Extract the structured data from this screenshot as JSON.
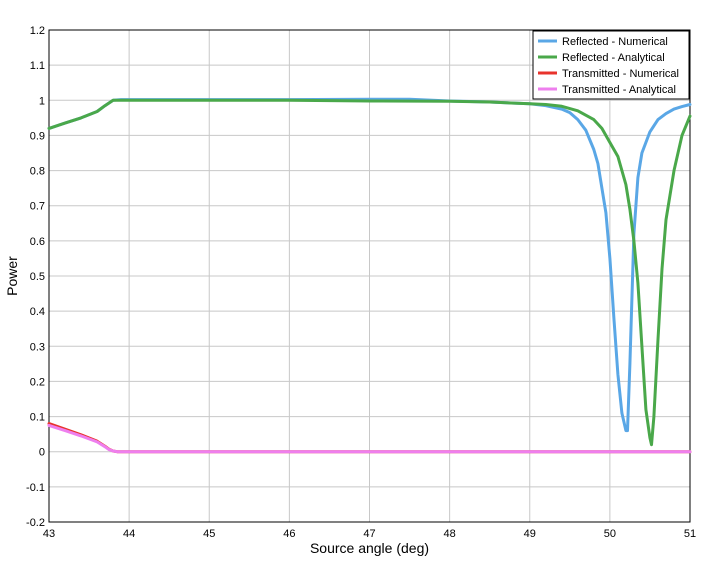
{
  "chart_data": {
    "type": "line",
    "title": "",
    "xlabel": "Source angle (deg)",
    "ylabel": "Power",
    "xlim": [
      43,
      51
    ],
    "ylim": [
      -0.2,
      1.2
    ],
    "xticks": [
      43,
      44,
      45,
      46,
      47,
      48,
      49,
      50,
      51
    ],
    "yticks": [
      -0.2,
      -0.1,
      0,
      0.1,
      0.2,
      0.3,
      0.4,
      0.5,
      0.6,
      0.7,
      0.8,
      0.9,
      1,
      1.1,
      1.2
    ],
    "xtick_labels": [
      "43",
      "44",
      "45",
      "46",
      "47",
      "48",
      "49",
      "50",
      "51"
    ],
    "ytick_labels": [
      "-0.2",
      "-0.1",
      "0",
      "0.1",
      "0.2",
      "0.3",
      "0.4",
      "0.5",
      "0.6",
      "0.7",
      "0.8",
      "0.9",
      "1",
      "1.1",
      "1.2"
    ],
    "grid": true,
    "legend_position": "top-right",
    "series": [
      {
        "name": "Reflected - Numerical",
        "color": "#5aa7e6",
        "x": [
          43,
          43.2,
          43.4,
          43.6,
          43.7,
          43.8,
          43.9,
          44,
          45,
          46,
          47,
          47.5,
          48,
          48.5,
          49,
          49.2,
          49.4,
          49.5,
          49.6,
          49.7,
          49.8,
          49.85,
          49.9,
          49.95,
          50,
          50.05,
          50.1,
          50.15,
          50.2,
          50.22,
          50.25,
          50.3,
          50.35,
          50.4,
          50.5,
          50.6,
          50.7,
          50.8,
          50.9,
          51
        ],
        "y": [
          0.92,
          0.935,
          0.95,
          0.968,
          0.985,
          1.0,
          1.002,
          1.002,
          1.002,
          1.002,
          1.003,
          1.003,
          0.998,
          0.995,
          0.99,
          0.985,
          0.975,
          0.965,
          0.945,
          0.915,
          0.86,
          0.82,
          0.75,
          0.68,
          0.55,
          0.38,
          0.22,
          0.11,
          0.06,
          0.06,
          0.25,
          0.62,
          0.78,
          0.85,
          0.91,
          0.945,
          0.962,
          0.975,
          0.982,
          0.988
        ]
      },
      {
        "name": "Reflected - Analytical",
        "color": "#4aa84a",
        "x": [
          43,
          43.2,
          43.4,
          43.6,
          43.7,
          43.8,
          43.9,
          44,
          45,
          46,
          47,
          48,
          48.5,
          49,
          49.2,
          49.4,
          49.6,
          49.8,
          49.9,
          50,
          50.1,
          50.2,
          50.25,
          50.3,
          50.35,
          50.4,
          50.45,
          50.5,
          50.52,
          50.55,
          50.6,
          50.65,
          50.7,
          50.8,
          50.9,
          51
        ],
        "y": [
          0.92,
          0.935,
          0.95,
          0.968,
          0.985,
          1.0,
          1.0,
          1.0,
          1.0,
          1.0,
          0.998,
          0.997,
          0.995,
          0.99,
          0.988,
          0.983,
          0.97,
          0.945,
          0.92,
          0.88,
          0.84,
          0.76,
          0.69,
          0.6,
          0.48,
          0.3,
          0.12,
          0.04,
          0.02,
          0.1,
          0.32,
          0.52,
          0.66,
          0.8,
          0.9,
          0.955
        ]
      },
      {
        "name": "Transmitted - Numerical",
        "color": "#e8332c",
        "x": [
          43,
          43.2,
          43.4,
          43.6,
          43.7,
          43.75,
          43.8,
          43.85,
          43.9,
          44,
          45,
          46,
          47,
          48,
          49,
          50,
          51
        ],
        "y": [
          0.08,
          0.064,
          0.048,
          0.03,
          0.015,
          0.007,
          0.002,
          0.0,
          0.0,
          0.0,
          0.0,
          0.0,
          0.0,
          0.0,
          0.0,
          0.0,
          0.0
        ]
      },
      {
        "name": "Transmitted - Analytical",
        "color": "#ee7fee",
        "x": [
          43,
          43.2,
          43.4,
          43.6,
          43.7,
          43.75,
          43.8,
          43.85,
          43.9,
          44,
          45,
          46,
          47,
          48,
          49,
          50,
          51
        ],
        "y": [
          0.075,
          0.06,
          0.045,
          0.028,
          0.014,
          0.006,
          0.002,
          0.0,
          0.0,
          0.0,
          0.0,
          0.0,
          0.0,
          0.0,
          0.0,
          0.0,
          0.0
        ]
      }
    ]
  }
}
